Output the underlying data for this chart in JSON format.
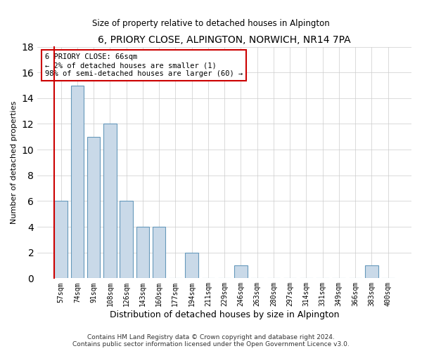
{
  "title": "6, PRIORY CLOSE, ALPINGTON, NORWICH, NR14 7PA",
  "subtitle": "Size of property relative to detached houses in Alpington",
  "xlabel": "Distribution of detached houses by size in Alpington",
  "ylabel": "Number of detached properties",
  "categories": [
    "57sqm",
    "74sqm",
    "91sqm",
    "108sqm",
    "126sqm",
    "143sqm",
    "160sqm",
    "177sqm",
    "194sqm",
    "211sqm",
    "229sqm",
    "246sqm",
    "263sqm",
    "280sqm",
    "297sqm",
    "314sqm",
    "331sqm",
    "349sqm",
    "366sqm",
    "383sqm",
    "400sqm"
  ],
  "values": [
    6,
    15,
    11,
    12,
    6,
    4,
    4,
    0,
    2,
    0,
    0,
    1,
    0,
    0,
    0,
    0,
    0,
    0,
    0,
    1,
    0
  ],
  "bar_color": "#c9d9e8",
  "bar_edge_color": "#6699bb",
  "highlight_color": "#cc0000",
  "annotation_text": "6 PRIORY CLOSE: 66sqm\n← 2% of detached houses are smaller (1)\n98% of semi-detached houses are larger (60) →",
  "annotation_box_color": "#ffffff",
  "annotation_box_edge": "#cc0000",
  "ylim": [
    0,
    18
  ],
  "yticks": [
    0,
    2,
    4,
    6,
    8,
    10,
    12,
    14,
    16,
    18
  ],
  "footer": "Contains HM Land Registry data © Crown copyright and database right 2024.\nContains public sector information licensed under the Open Government Licence v3.0.",
  "bg_color": "#ffffff",
  "grid_color": "#cccccc"
}
